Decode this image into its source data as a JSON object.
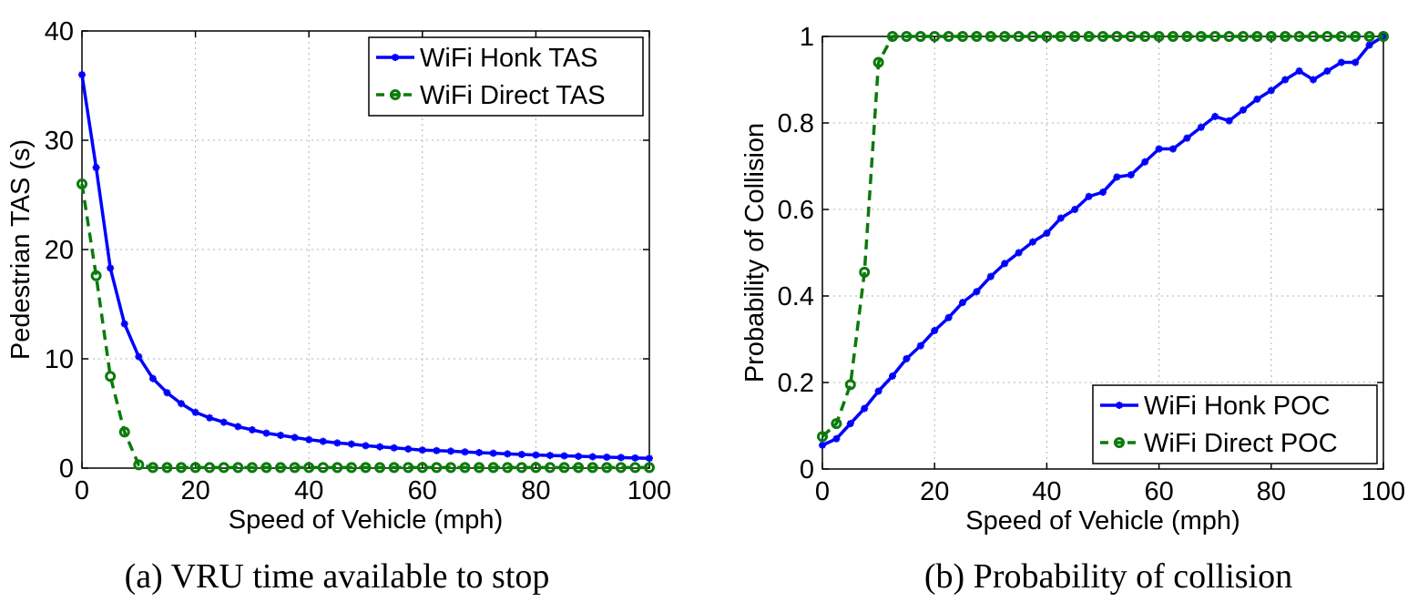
{
  "chart_data": [
    {
      "type": "line",
      "caption": "(a) VRU time available to stop",
      "xlabel": "Speed of Vehicle (mph)",
      "ylabel": "Pedestrian TAS (s)",
      "xlim": [
        0,
        100
      ],
      "ylim": [
        0,
        40
      ],
      "xticks": [
        0,
        20,
        40,
        60,
        80,
        100
      ],
      "yticks": [
        0,
        10,
        20,
        30,
        40
      ],
      "grid": true,
      "legend_position": "top-right",
      "series": [
        {
          "name": "WiFi Honk TAS",
          "color": "#0000ff",
          "line_style": "solid",
          "marker": "star",
          "x": [
            0,
            2.5,
            5,
            7.5,
            10,
            12.5,
            15,
            17.5,
            20,
            22.5,
            25,
            27.5,
            30,
            32.5,
            35,
            37.5,
            40,
            42.5,
            45,
            47.5,
            50,
            52.5,
            55,
            57.5,
            60,
            62.5,
            65,
            67.5,
            70,
            72.5,
            75,
            77.5,
            80,
            82.5,
            85,
            87.5,
            90,
            92.5,
            95,
            97.5,
            100
          ],
          "y": [
            36,
            27.5,
            18.3,
            13.2,
            10.2,
            8.2,
            6.9,
            5.9,
            5.1,
            4.6,
            4.2,
            3.8,
            3.5,
            3.2,
            3.0,
            2.8,
            2.6,
            2.45,
            2.3,
            2.2,
            2.05,
            1.95,
            1.85,
            1.75,
            1.65,
            1.6,
            1.55,
            1.48,
            1.42,
            1.36,
            1.3,
            1.25,
            1.2,
            1.16,
            1.12,
            1.08,
            1.04,
            1.0,
            0.97,
            0.93,
            0.9
          ]
        },
        {
          "name": "WiFi Direct TAS",
          "color": "#0b7a0b",
          "line_style": "dashed",
          "marker": "circle",
          "x": [
            0,
            2.5,
            5,
            7.5,
            10,
            12.5,
            15,
            17.5,
            20,
            22.5,
            25,
            27.5,
            30,
            32.5,
            35,
            37.5,
            40,
            42.5,
            45,
            47.5,
            50,
            52.5,
            55,
            57.5,
            60,
            62.5,
            65,
            67.5,
            70,
            72.5,
            75,
            77.5,
            80,
            82.5,
            85,
            87.5,
            90,
            92.5,
            95,
            97.5,
            100
          ],
          "y": [
            26,
            17.6,
            8.4,
            3.3,
            0.3,
            0.05,
            0.05,
            0.05,
            0.05,
            0.05,
            0.05,
            0.05,
            0.05,
            0.05,
            0.05,
            0.05,
            0.05,
            0.05,
            0.05,
            0.05,
            0.05,
            0.05,
            0.05,
            0.05,
            0.05,
            0.05,
            0.05,
            0.05,
            0.05,
            0.05,
            0.05,
            0.05,
            0.05,
            0.05,
            0.05,
            0.05,
            0.05,
            0.05,
            0.05,
            0.05,
            0.05
          ]
        }
      ]
    },
    {
      "type": "line",
      "caption": "(b) Probability of collision",
      "xlabel": "Speed of Vehicle (mph)",
      "ylabel": "Probability of Collision",
      "xlim": [
        0,
        100
      ],
      "ylim": [
        0,
        1
      ],
      "xticks": [
        0,
        20,
        40,
        60,
        80,
        100
      ],
      "yticks": [
        0,
        0.2,
        0.4,
        0.6,
        0.8,
        1
      ],
      "grid": true,
      "legend_position": "bottom-right",
      "series": [
        {
          "name": "WiFi Honk POC",
          "color": "#0000ff",
          "line_style": "solid",
          "marker": "star",
          "x": [
            0,
            2.5,
            5,
            7.5,
            10,
            12.5,
            15,
            17.5,
            20,
            22.5,
            25,
            27.5,
            30,
            32.5,
            35,
            37.5,
            40,
            42.5,
            45,
            47.5,
            50,
            52.5,
            55,
            57.5,
            60,
            62.5,
            65,
            67.5,
            70,
            72.5,
            75,
            77.5,
            80,
            82.5,
            85,
            87.5,
            90,
            92.5,
            95,
            97.5,
            100
          ],
          "y": [
            0.055,
            0.07,
            0.105,
            0.14,
            0.18,
            0.215,
            0.255,
            0.285,
            0.32,
            0.35,
            0.385,
            0.41,
            0.445,
            0.475,
            0.5,
            0.525,
            0.545,
            0.58,
            0.6,
            0.63,
            0.64,
            0.675,
            0.68,
            0.71,
            0.74,
            0.74,
            0.765,
            0.79,
            0.815,
            0.805,
            0.83,
            0.855,
            0.875,
            0.9,
            0.92,
            0.9,
            0.92,
            0.94,
            0.94,
            0.98,
            1.0
          ]
        },
        {
          "name": "WiFi Direct POC",
          "color": "#0b7a0b",
          "line_style": "dashed",
          "marker": "circle",
          "x": [
            0,
            2.5,
            5,
            7.5,
            10,
            12.5,
            15,
            17.5,
            20,
            22.5,
            25,
            27.5,
            30,
            32.5,
            35,
            37.5,
            40,
            42.5,
            45,
            47.5,
            50,
            52.5,
            55,
            57.5,
            60,
            62.5,
            65,
            67.5,
            70,
            72.5,
            75,
            77.5,
            80,
            82.5,
            85,
            87.5,
            90,
            92.5,
            95,
            97.5,
            100
          ],
          "y": [
            0.075,
            0.105,
            0.195,
            0.455,
            0.94,
            1.0,
            1.0,
            1.0,
            1.0,
            1.0,
            1.0,
            1.0,
            1.0,
            1.0,
            1.0,
            1.0,
            1.0,
            1.0,
            1.0,
            1.0,
            1.0,
            1.0,
            1.0,
            1.0,
            1.0,
            1.0,
            1.0,
            1.0,
            1.0,
            1.0,
            1.0,
            1.0,
            1.0,
            1.0,
            1.0,
            1.0,
            1.0,
            1.0,
            1.0,
            1.0,
            1.0
          ]
        }
      ]
    }
  ]
}
